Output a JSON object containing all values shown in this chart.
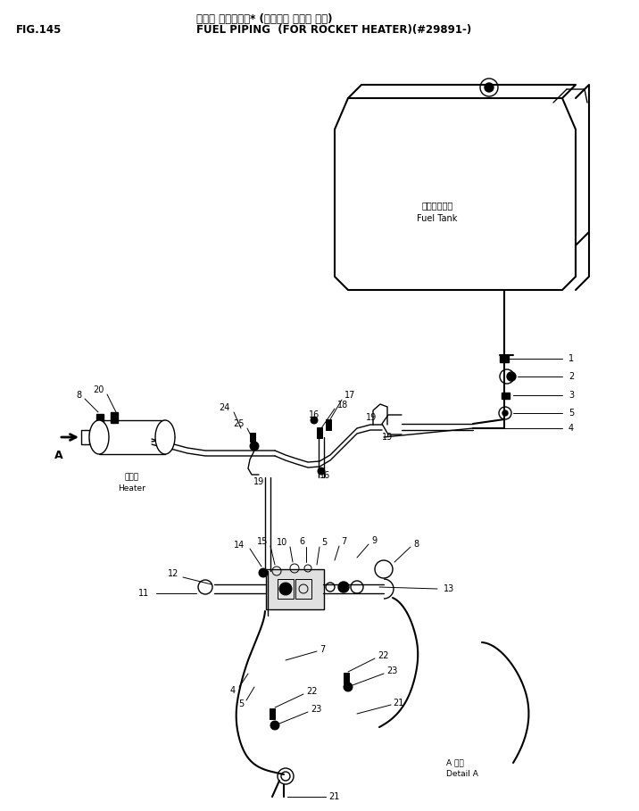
{
  "title_jp": "フェル パイピング* (ロケット ヒータ ヨウ)",
  "title_en": "FUEL PIPING  (FOR ROCKET HEATER)(#29891-)",
  "fig_label": "FIG.145",
  "bg_color": "#ffffff",
  "line_color": "#000000",
  "text_color": "#000000",
  "font_size_title": 8.5,
  "font_size_labels": 7,
  "font_size_fig": 8.5,
  "tank_label_jp": "フェルタンク",
  "tank_label_en": "Fuel Tank",
  "heater_label_jp": "ヒータ",
  "heater_label_en": "Heater",
  "detail_label_jp": "A 詳図",
  "detail_label_en": "Detail A"
}
